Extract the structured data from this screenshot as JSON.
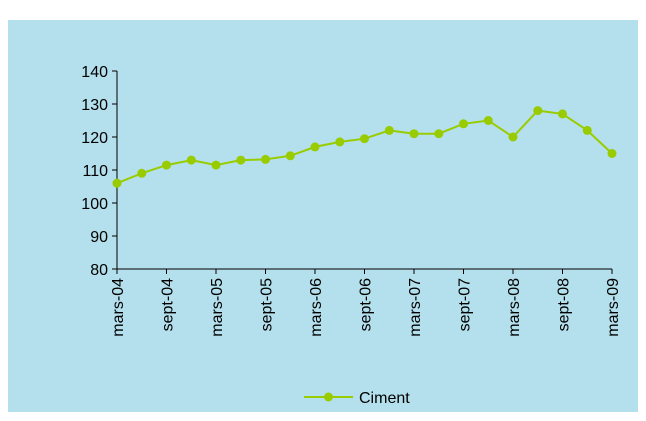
{
  "chart_data": {
    "type": "line",
    "title": "",
    "xlabel": "",
    "ylabel": "",
    "ylim": [
      80,
      140
    ],
    "yticks": [
      80,
      90,
      100,
      110,
      120,
      130,
      140
    ],
    "grid": false,
    "legend_position": "bottom",
    "background_color": "#b3e0ec",
    "x_tick_labels": [
      "mars-04",
      "sept-04",
      "mars-05",
      "sept-05",
      "mars-06",
      "sept-06",
      "mars-07",
      "sept-07",
      "mars-08",
      "sept-08",
      "mars-09"
    ],
    "series": [
      {
        "name": "Ciment",
        "color": "#99cc00",
        "values": [
          106,
          109,
          111.5,
          113,
          111.5,
          113,
          113.2,
          114.3,
          117,
          118.5,
          119.5,
          122,
          121,
          121,
          124,
          125,
          120,
          128,
          127,
          122,
          115
        ]
      }
    ]
  }
}
